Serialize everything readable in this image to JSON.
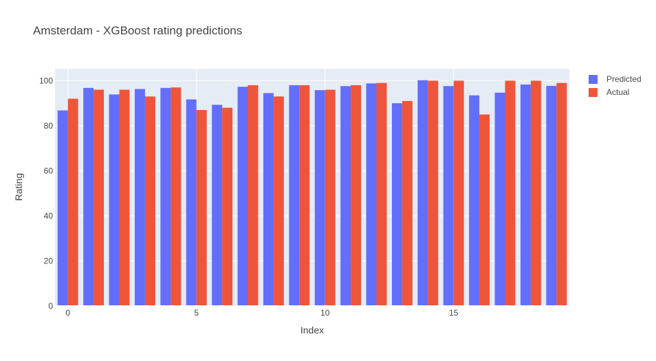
{
  "chart_data": {
    "type": "bar",
    "title": "Amsterdam - XGBoost rating predictions",
    "xlabel": "Index",
    "ylabel": "Rating",
    "x": [
      0,
      1,
      2,
      3,
      4,
      5,
      6,
      7,
      8,
      9,
      10,
      11,
      12,
      13,
      14,
      15,
      16,
      17,
      18,
      19
    ],
    "x_ticks": [
      0,
      5,
      10,
      15
    ],
    "y_ticks": [
      0,
      20,
      40,
      60,
      80,
      100
    ],
    "xlim": [
      -0.5,
      19.5
    ],
    "ylim": [
      0,
      105.3
    ],
    "grid": true,
    "legend_position": "top-right",
    "series": [
      {
        "name": "Predicted",
        "color": "#636efa",
        "values": [
          86.8,
          96.8,
          93.9,
          96.3,
          96.8,
          91.7,
          89.3,
          97.3,
          94.5,
          98.0,
          95.8,
          97.6,
          98.8,
          90.0,
          100.2,
          97.6,
          93.5,
          94.7,
          98.3,
          97.7
        ]
      },
      {
        "name": "Actual",
        "color": "#ef553b",
        "values": [
          92,
          96,
          96,
          93,
          97,
          87,
          88,
          98,
          93,
          98,
          96,
          98,
          99,
          91,
          100,
          100,
          85,
          100,
          100,
          99
        ]
      }
    ]
  }
}
